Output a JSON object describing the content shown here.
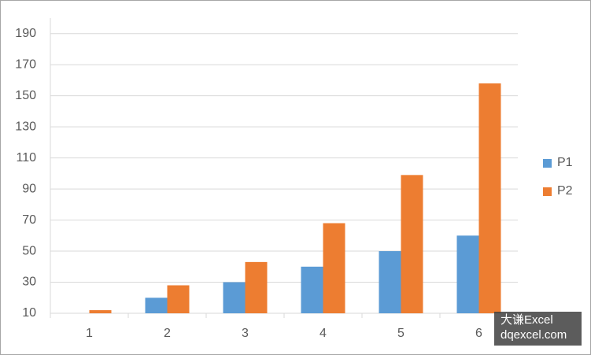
{
  "chart_data": {
    "type": "bar",
    "categories": [
      "1",
      "2",
      "3",
      "4",
      "5",
      "6"
    ],
    "series": [
      {
        "name": "P1",
        "color": "#5b9bd5",
        "values": [
          10,
          20,
          30,
          40,
          50,
          60
        ]
      },
      {
        "name": "P2",
        "color": "#ed7d31",
        "values": [
          12,
          28,
          43,
          68,
          99,
          158
        ]
      }
    ],
    "ylim": [
      10,
      200
    ],
    "yticks": [
      10,
      30,
      50,
      70,
      90,
      110,
      130,
      150,
      170,
      190
    ],
    "grid": true,
    "legend": "right"
  },
  "watermark": [
    "大谦Excel",
    "dqexcel.com"
  ]
}
